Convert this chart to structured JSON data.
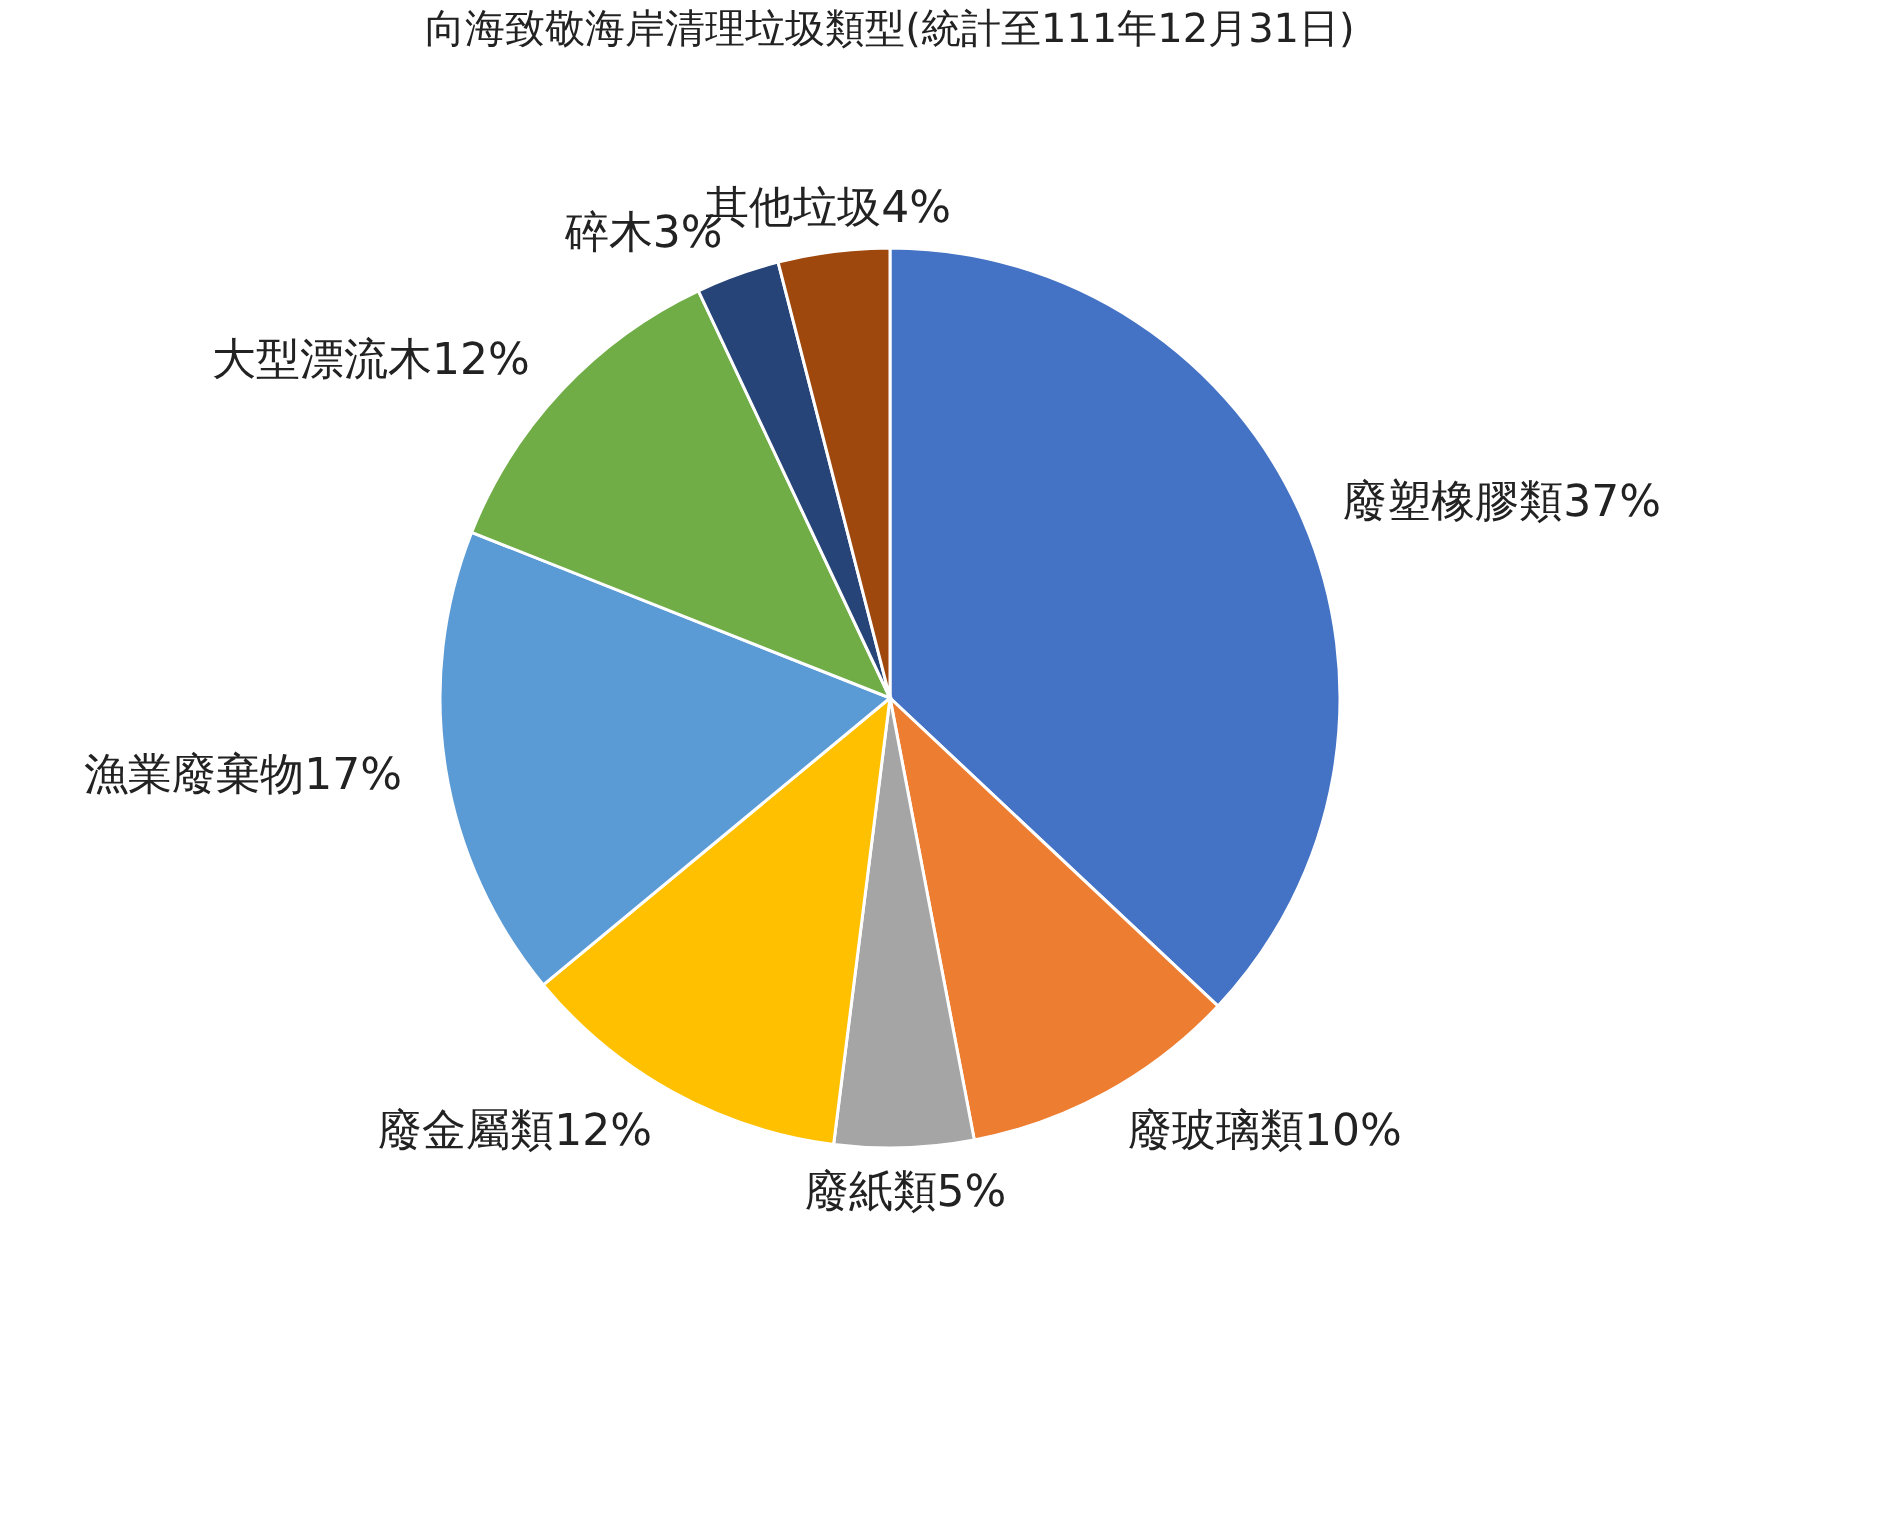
{
  "chart_data": {
    "type": "pie",
    "title": "向海致敬海岸清理垃圾類型(統計至111年12月31日)",
    "categories": [
      "廢塑橡膠類",
      "廢玻璃類",
      "廢紙類",
      "廢金屬類",
      "漁業廢棄物",
      "大型漂流木",
      "碎木",
      "其他垃圾"
    ],
    "values": [
      37,
      10,
      5,
      12,
      17,
      12,
      3,
      4
    ],
    "value_labels": [
      "37%",
      "10%",
      "5%",
      "12%",
      "17%",
      "12%",
      "3%",
      "4%"
    ],
    "colors": [
      "#4472c4",
      "#ed7d31",
      "#a5a5a5",
      "#ffc000",
      "#5b9bd5",
      "#70ad47",
      "#264478",
      "#9e480e"
    ],
    "legend": false
  }
}
